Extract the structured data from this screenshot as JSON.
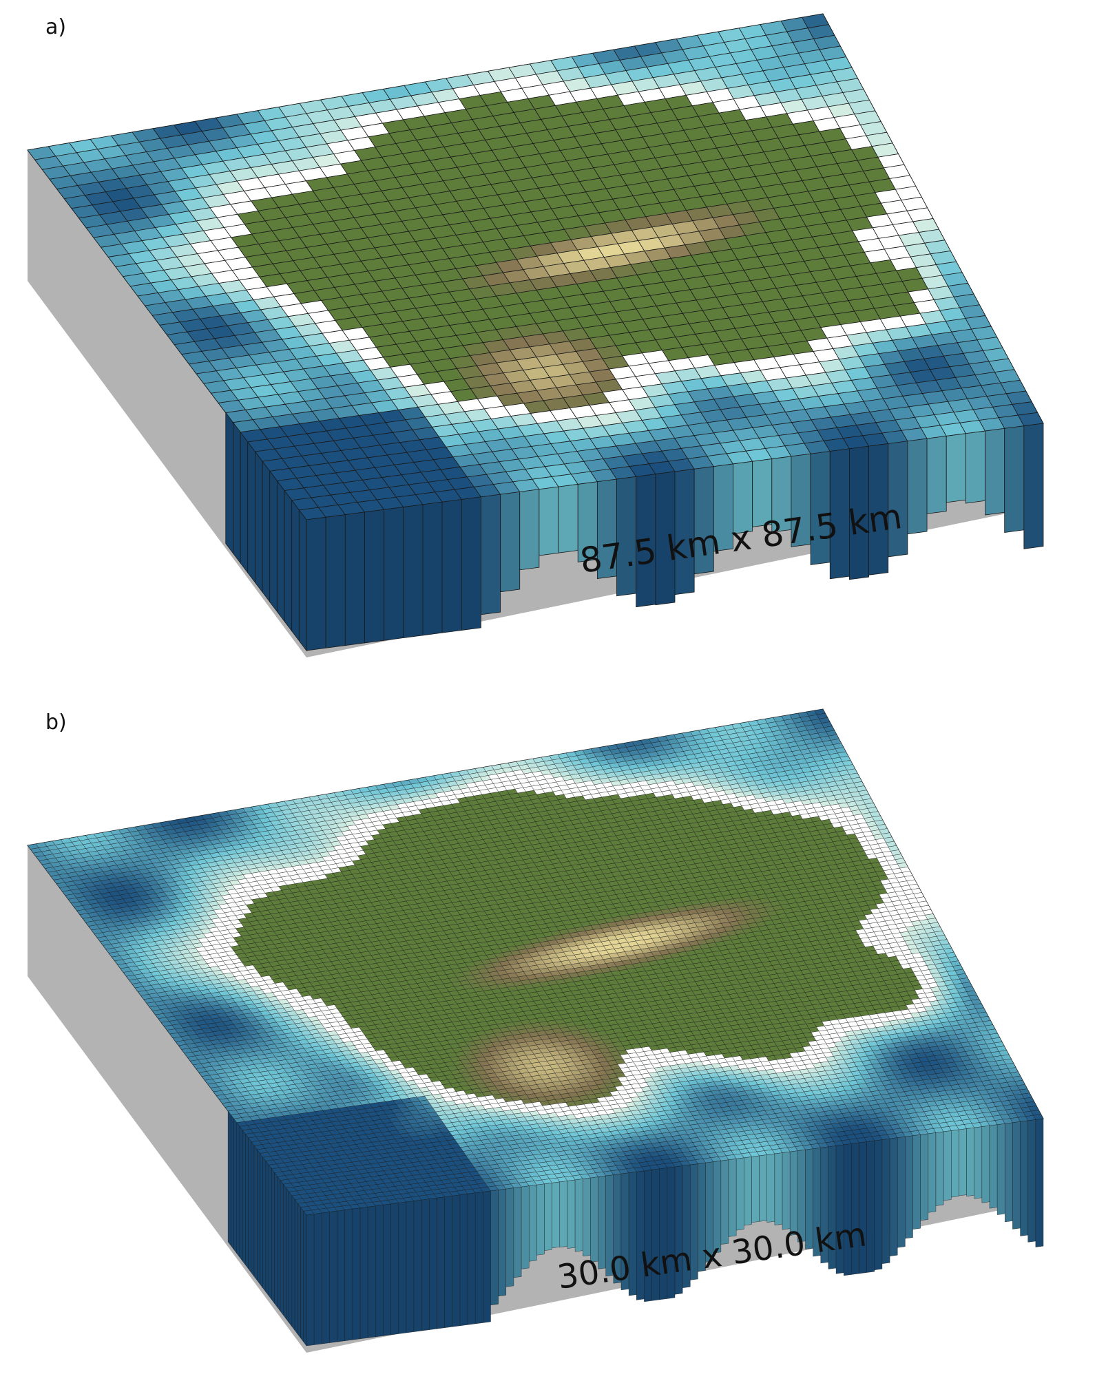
{
  "panels": [
    {
      "label": "a)",
      "resolution_label": "87.5 km x 87.5 km"
    },
    {
      "label": "b)",
      "resolution_label": "30.0 km x 30.0 km"
    }
  ],
  "colors": {
    "block_side": "#b3b3b3",
    "land_low": "#5e7d3b",
    "land_mid": "#857552",
    "land_high": "#e3d595",
    "sea_shallow": "#d8efe4",
    "sea_mid": "#6fc6d6",
    "sea_deep": "#1b4f7d",
    "grid_line": "#1a1a1a"
  }
}
